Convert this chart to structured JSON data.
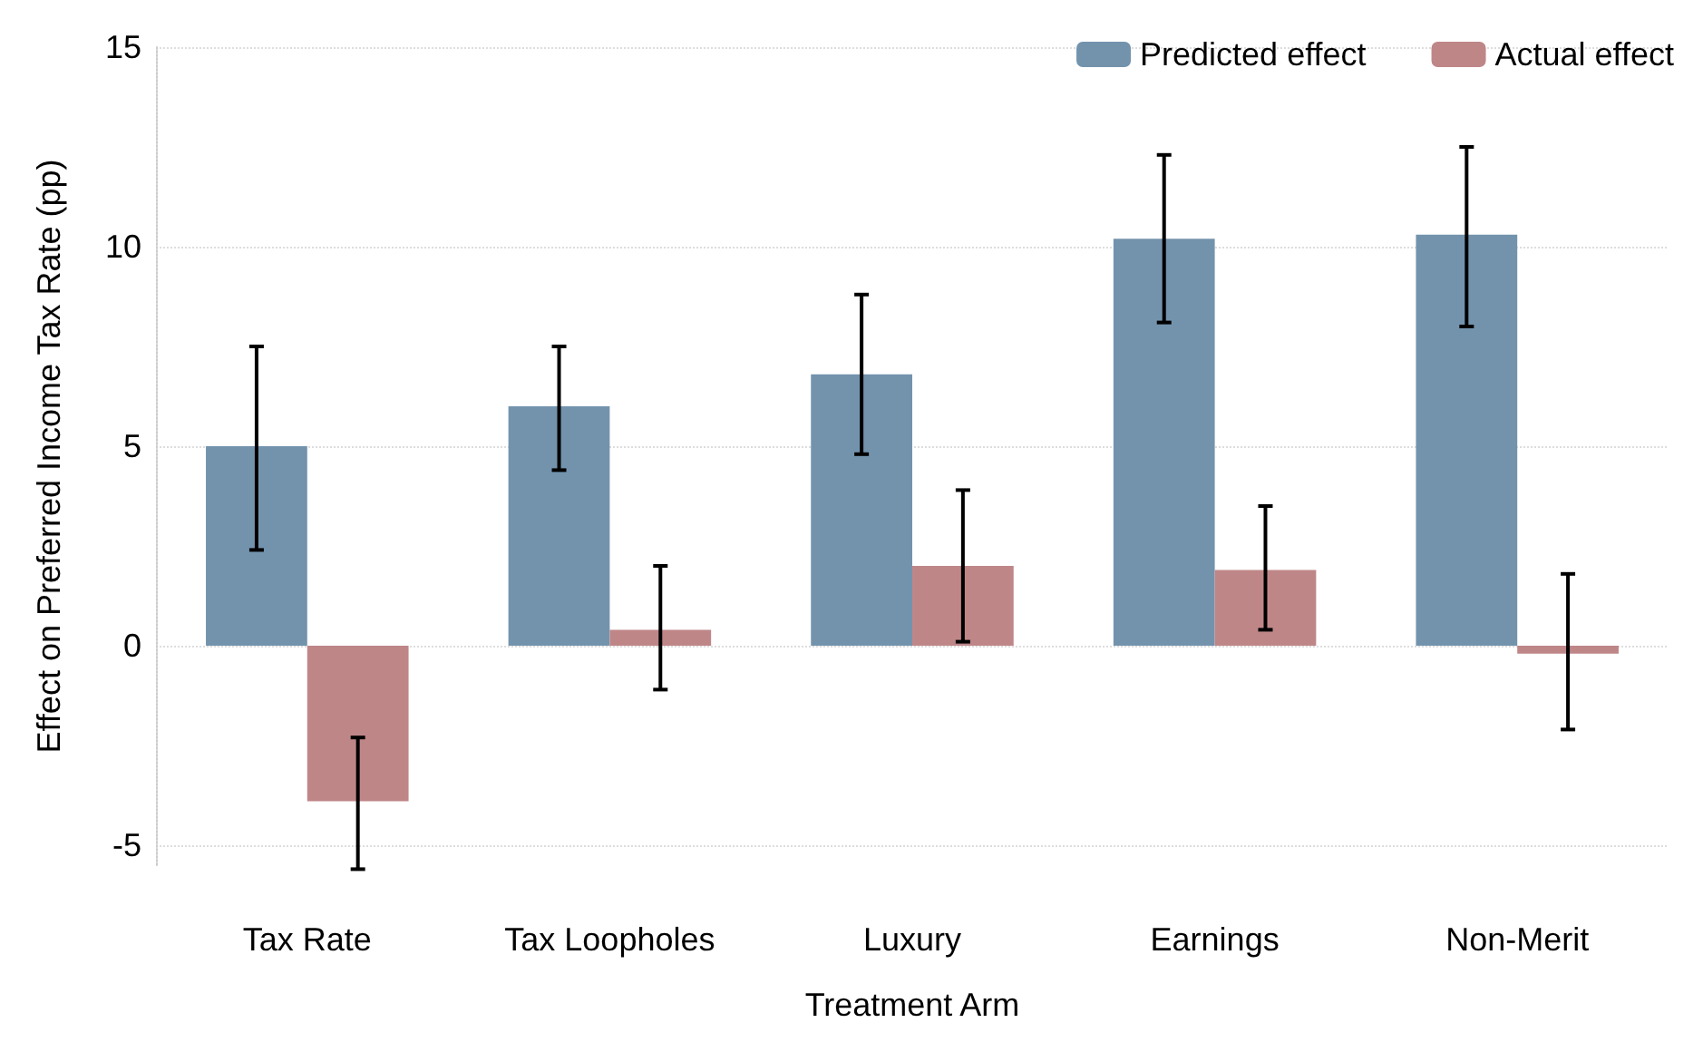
{
  "chart_data": {
    "type": "bar",
    "xlabel": "Treatment Arm",
    "ylabel": "Effect on Preferred Income Tax Rate (pp)",
    "categories": [
      "Tax Rate",
      "Tax Loopholes",
      "Luxury",
      "Earnings",
      "Non-Merit"
    ],
    "series": [
      {
        "name": "Predicted effect",
        "color": "#7393ad",
        "values": [
          5.0,
          6.0,
          6.8,
          10.2,
          10.3
        ],
        "errors": [
          [
            2.4,
            7.5
          ],
          [
            4.4,
            7.5
          ],
          [
            4.8,
            8.8
          ],
          [
            8.1,
            12.3
          ],
          [
            8.0,
            12.5
          ]
        ]
      },
      {
        "name": "Actual effect",
        "color": "#bf8688",
        "values": [
          -3.9,
          0.4,
          2.0,
          1.9,
          -0.2
        ],
        "errors": [
          [
            -5.6,
            -2.3
          ],
          [
            -1.1,
            2.0
          ],
          [
            0.1,
            3.9
          ],
          [
            0.4,
            3.5
          ],
          [
            -2.1,
            1.8
          ]
        ]
      }
    ],
    "ylim": [
      -5.5,
      15
    ],
    "yticks": [
      -5,
      0,
      5,
      10,
      15
    ],
    "grid": "y",
    "legend": "top right"
  }
}
